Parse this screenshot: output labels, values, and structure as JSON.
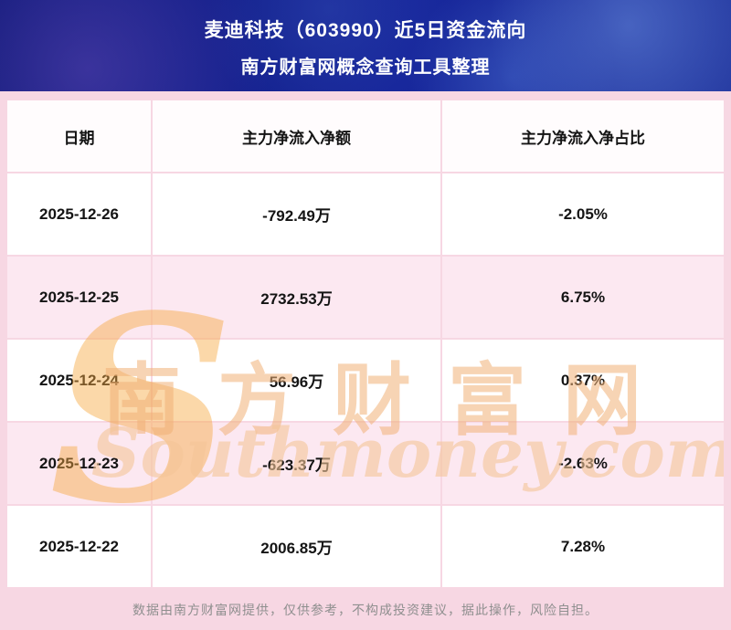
{
  "chart_data": {
    "type": "table",
    "title": "麦迪科技（603990）近5日资金流向",
    "subtitle": "南方财富网概念查询工具整理",
    "columns": [
      "日期",
      "主力净流入净额",
      "主力净流入净占比"
    ],
    "rows": [
      [
        "2025-12-26",
        "-792.49万",
        "-2.05%"
      ],
      [
        "2025-12-25",
        "2732.53万",
        "6.75%"
      ],
      [
        "2025-12-24",
        "56.96万",
        "0.37%"
      ],
      [
        "2025-12-23",
        "-623.37万",
        "-2.63%"
      ],
      [
        "2025-12-22",
        "2006.85万",
        "7.28%"
      ]
    ]
  },
  "watermark": {
    "initial": "S",
    "cn": "南方财富网",
    "en": "Southmoney.com"
  },
  "footer": {
    "disclaimer": "数据由南方财富网提供，仅供参考，不构成投资建议，据此操作，风险自担。"
  },
  "colors": {
    "banner_bg": "#16259a",
    "row_pink": "#fce8f1",
    "page_pink": "#f7d7e3",
    "watermark_orange": "#f2a45f",
    "footer_text": "#8f8f8f"
  }
}
